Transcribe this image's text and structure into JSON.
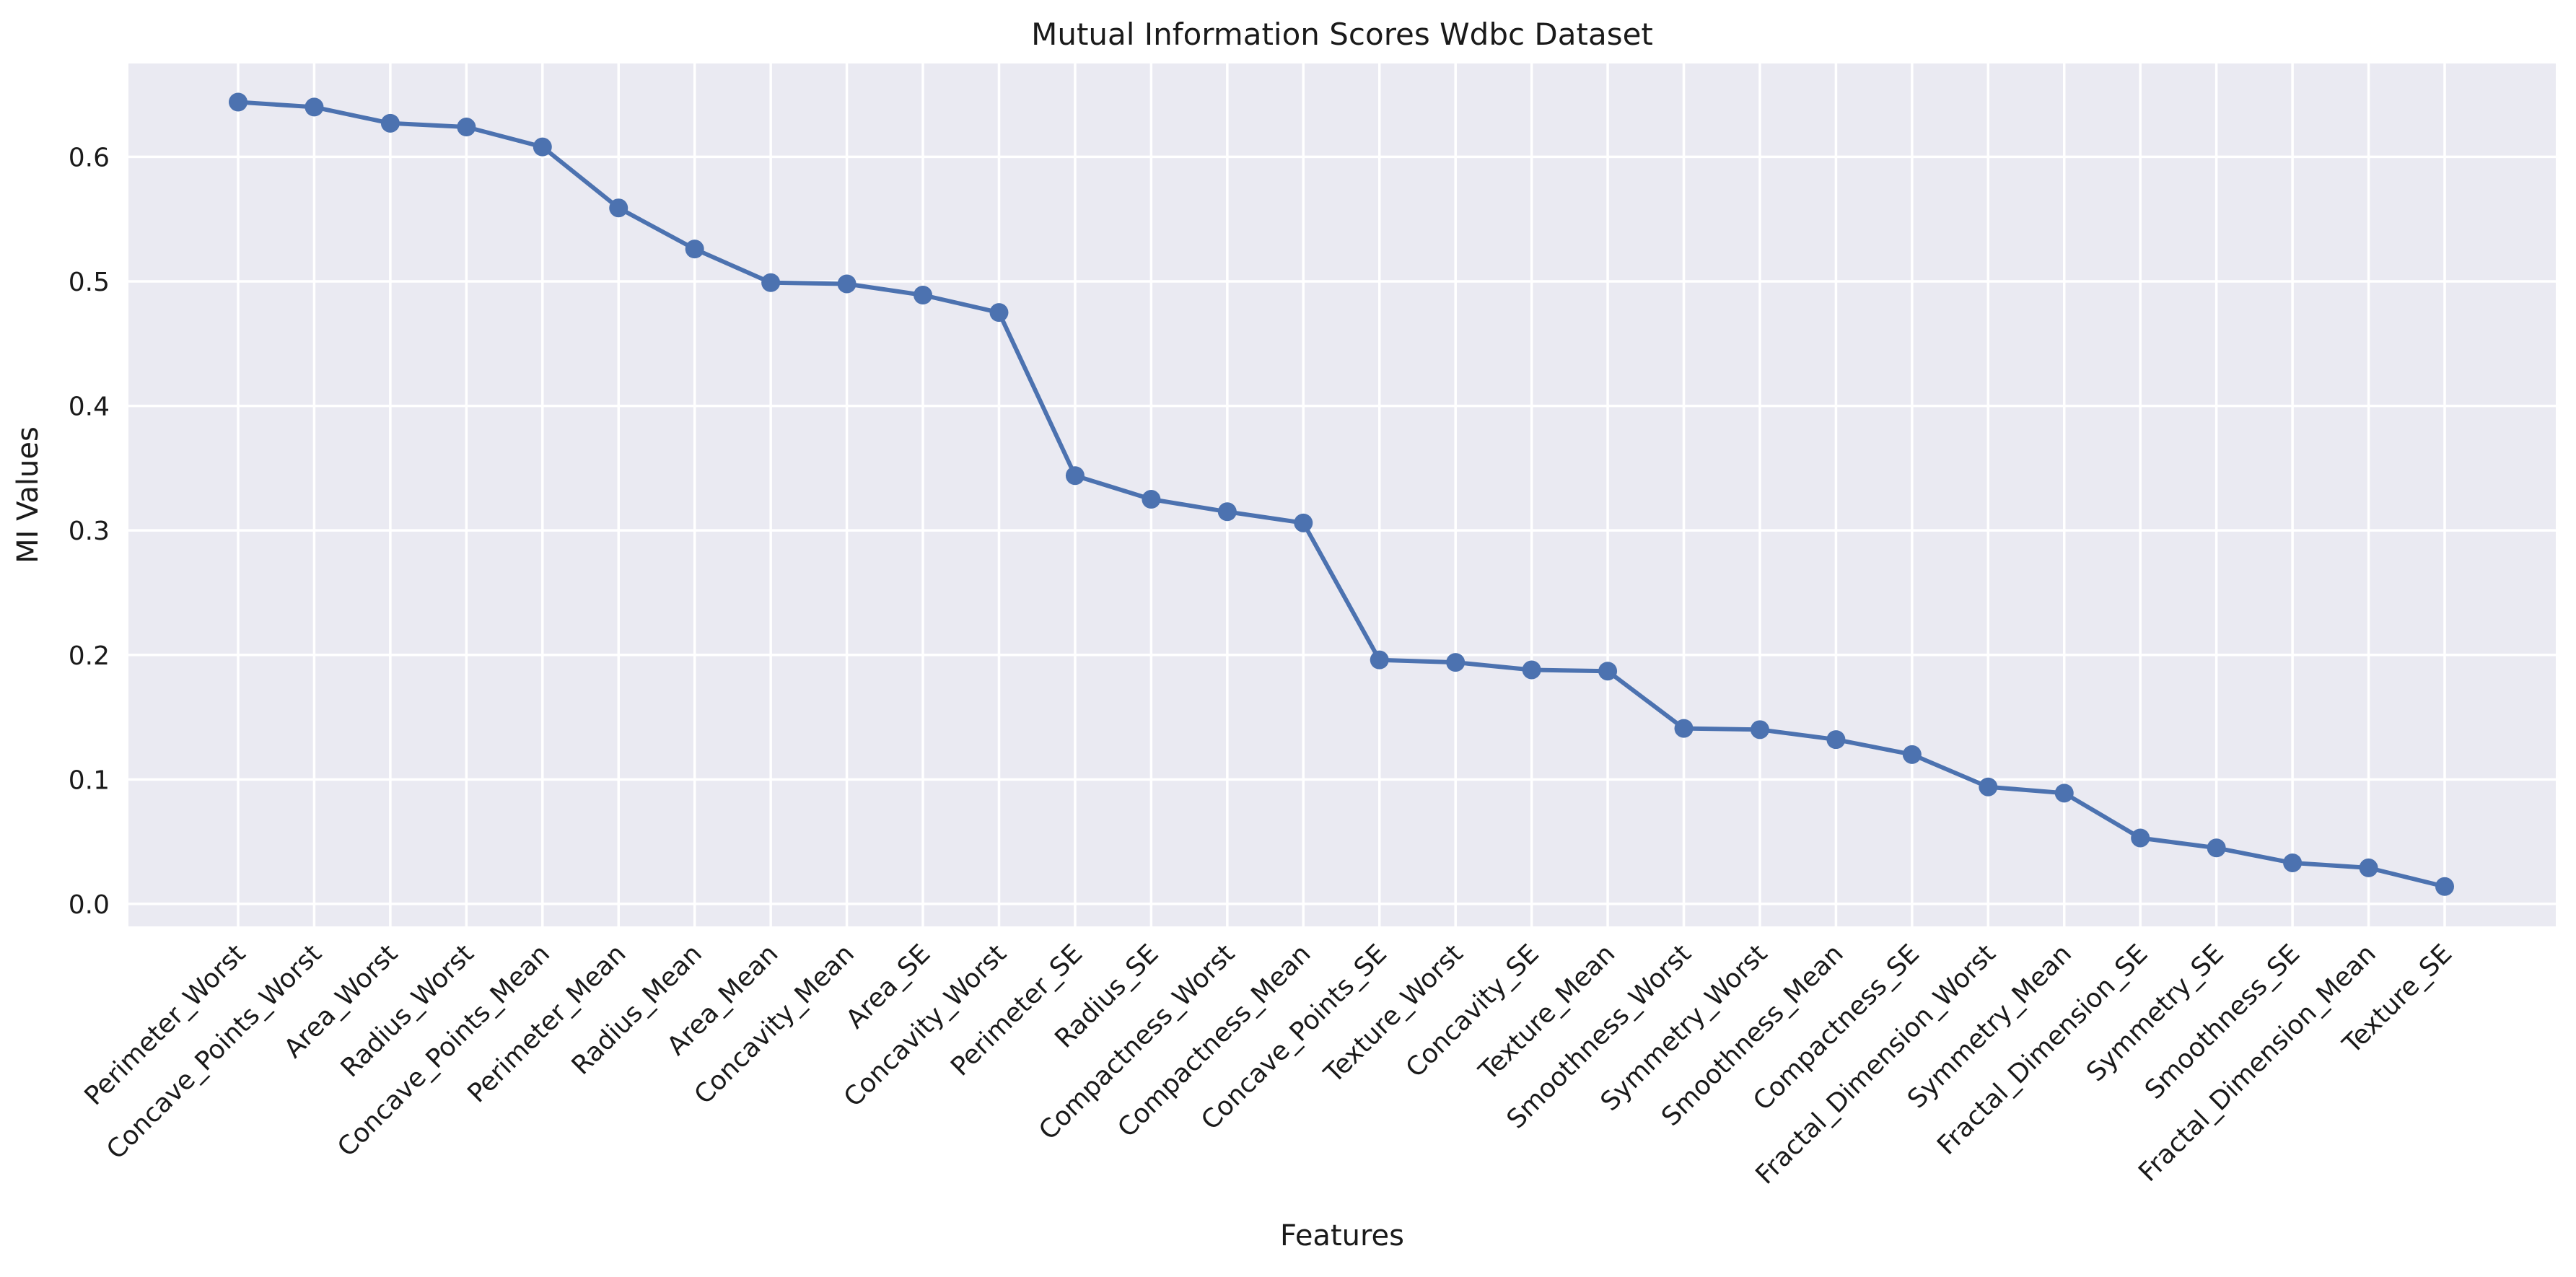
{
  "chart_data": {
    "type": "line",
    "title": "Mutual Information Scores Wdbc Dataset",
    "xlabel": "Features",
    "ylabel": "MI Values",
    "ylim": [
      -0.018,
      0.675
    ],
    "yticks": [
      0.0,
      0.1,
      0.2,
      0.3,
      0.4,
      0.5,
      0.6
    ],
    "ytick_labels": [
      "0.0",
      "0.1",
      "0.2",
      "0.3",
      "0.4",
      "0.5",
      "0.6"
    ],
    "grid": true,
    "legend": "none",
    "colors": {
      "line": "#4c72b0",
      "plot_background": "#eaeaf2",
      "grid": "#ffffff"
    },
    "categories": [
      "Perimeter_Worst",
      "Concave_Points_Worst",
      "Area_Worst",
      "Radius_Worst",
      "Concave_Points_Mean",
      "Perimeter_Mean",
      "Radius_Mean",
      "Area_Mean",
      "Concavity_Mean",
      "Area_SE",
      "Concavity_Worst",
      "Perimeter_SE",
      "Radius_SE",
      "Compactness_Worst",
      "Compactness_Mean",
      "Concave_Points_SE",
      "Texture_Worst",
      "Concavity_SE",
      "Texture_Mean",
      "Smoothness_Worst",
      "Symmetry_Worst",
      "Smoothness_Mean",
      "Compactness_SE",
      "Fractal_Dimension_Worst",
      "Symmetry_Mean",
      "Fractal_Dimension_SE",
      "Symmetry_SE",
      "Smoothness_SE",
      "Fractal_Dimension_Mean",
      "Texture_SE"
    ],
    "values": [
      0.644,
      0.64,
      0.627,
      0.624,
      0.608,
      0.559,
      0.526,
      0.499,
      0.498,
      0.489,
      0.475,
      0.344,
      0.325,
      0.315,
      0.306,
      0.196,
      0.194,
      0.188,
      0.187,
      0.141,
      0.14,
      0.132,
      0.12,
      0.094,
      0.089,
      0.053,
      0.045,
      0.033,
      0.029,
      0.014
    ]
  }
}
